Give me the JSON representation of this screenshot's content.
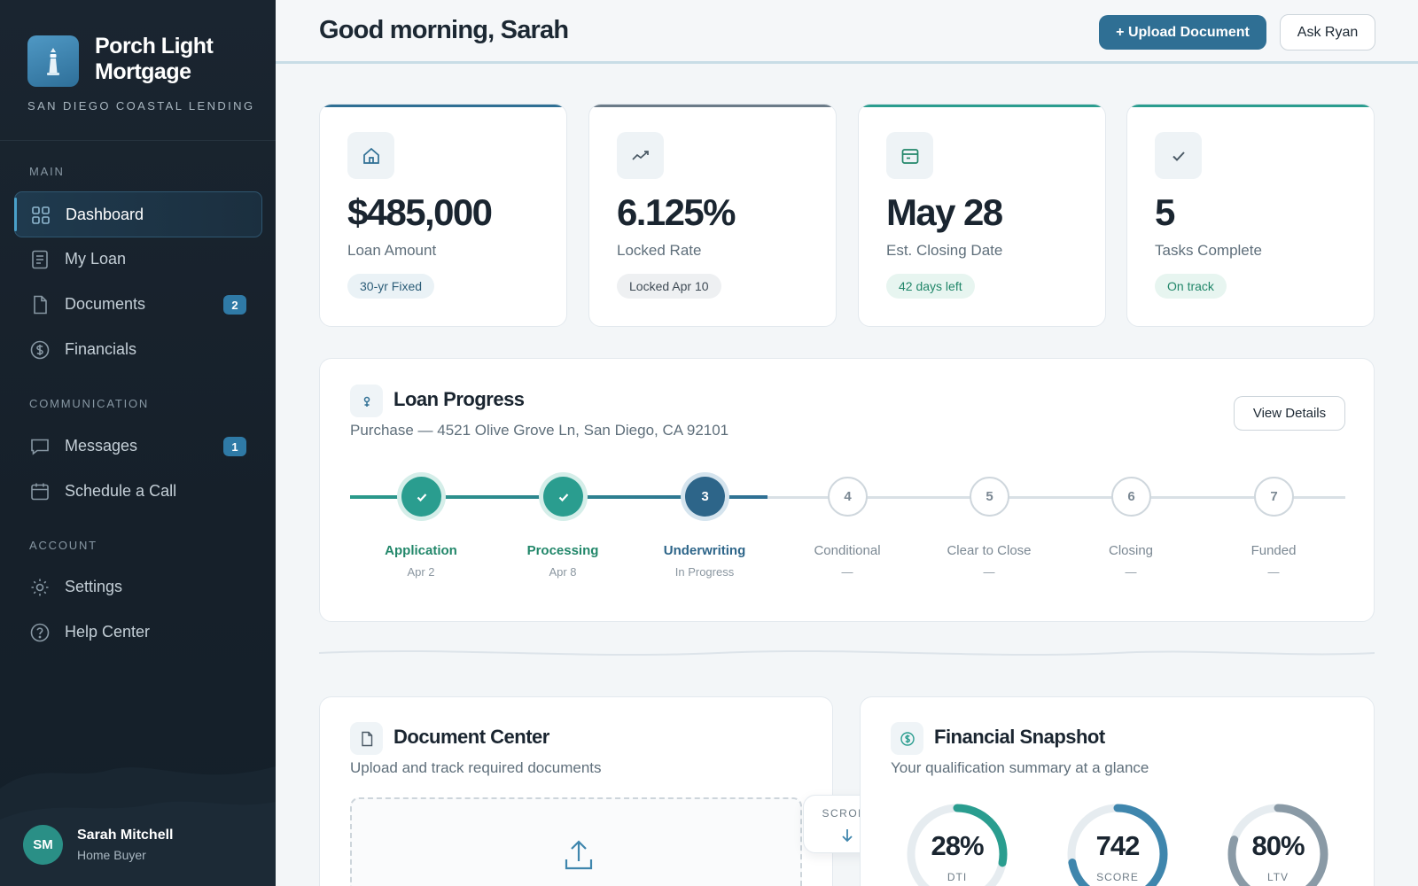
{
  "brand": {
    "name": "Porch Light Mortgage",
    "tagline": "SAN DIEGO COASTAL LENDING"
  },
  "sidebar": {
    "sections": [
      {
        "label": "MAIN"
      },
      {
        "label": "COMMUNICATION"
      },
      {
        "label": "ACCOUNT"
      }
    ],
    "items": [
      {
        "label": "Dashboard",
        "icon": "grid-icon",
        "active": true
      },
      {
        "label": "My Loan",
        "icon": "document-text-icon"
      },
      {
        "label": "Documents",
        "icon": "file-icon",
        "badge": "2"
      },
      {
        "label": "Financials",
        "icon": "dollar-circle-icon"
      },
      {
        "label": "Messages",
        "icon": "chat-icon",
        "badge": "1"
      },
      {
        "label": "Schedule a Call",
        "icon": "calendar-icon"
      },
      {
        "label": "Settings",
        "icon": "gear-icon"
      },
      {
        "label": "Help Center",
        "icon": "help-circle-icon"
      }
    ],
    "user": {
      "initials": "SM",
      "name": "Sarah Mitchell",
      "role": "Home Buyer"
    }
  },
  "header": {
    "greeting": "Good morning, Sarah",
    "upload_label": "+ Upload Document",
    "ask_label": "Ask Ryan"
  },
  "stats": [
    {
      "icon": "home-icon",
      "value": "$485,000",
      "label": "Loan Amount",
      "pill": "30-yr Fixed",
      "accent": "#2f6f94"
    },
    {
      "icon": "trend-icon",
      "value": "6.125%",
      "label": "Locked Rate",
      "pill": "Locked Apr 10",
      "accent": "#6b7b88"
    },
    {
      "icon": "calendar-card-icon",
      "value": "May 28",
      "label": "Est. Closing Date",
      "pill": "42 days left",
      "accent": "#2a9d8f"
    },
    {
      "icon": "check-icon",
      "value": "5",
      "label": "Tasks Complete",
      "pill": "On track",
      "accent": "#2a9d8f"
    }
  ],
  "progress": {
    "title": "Loan Progress",
    "subtitle": "Purchase — 4521 Olive Grove Ln, San Diego, CA 92101",
    "view_label": "View Details",
    "steps": [
      {
        "num": "1",
        "name": "Application",
        "date": "Apr 2",
        "status": "done"
      },
      {
        "num": "2",
        "name": "Processing",
        "date": "Apr 8",
        "status": "done"
      },
      {
        "num": "3",
        "name": "Underwriting",
        "date": "In Progress",
        "status": "current"
      },
      {
        "num": "4",
        "name": "Conditional",
        "date": "—",
        "status": "pending"
      },
      {
        "num": "5",
        "name": "Clear to Close",
        "date": "—",
        "status": "pending"
      },
      {
        "num": "6",
        "name": "Closing",
        "date": "—",
        "status": "pending"
      },
      {
        "num": "7",
        "name": "Funded",
        "date": "—",
        "status": "pending"
      }
    ]
  },
  "documents": {
    "title": "Document Center",
    "subtitle": "Upload and track required documents"
  },
  "scroll_hint": "SCROLL",
  "financial": {
    "title": "Financial Snapshot",
    "subtitle": "Your qualification summary at a glance",
    "gauges": [
      {
        "value": "28%",
        "label": "DTI",
        "fraction": 0.28,
        "color": "#2a9d8f"
      },
      {
        "value": "742",
        "label": "SCORE",
        "fraction": 0.72,
        "color": "#3f86ad"
      },
      {
        "value": "80%",
        "label": "LTV",
        "fraction": 0.8,
        "color": "#8a9aa6"
      }
    ]
  },
  "colors": {
    "primary": "#2f6f94",
    "success": "#2a9d8f",
    "sidebar_bg": "#1a2530"
  }
}
